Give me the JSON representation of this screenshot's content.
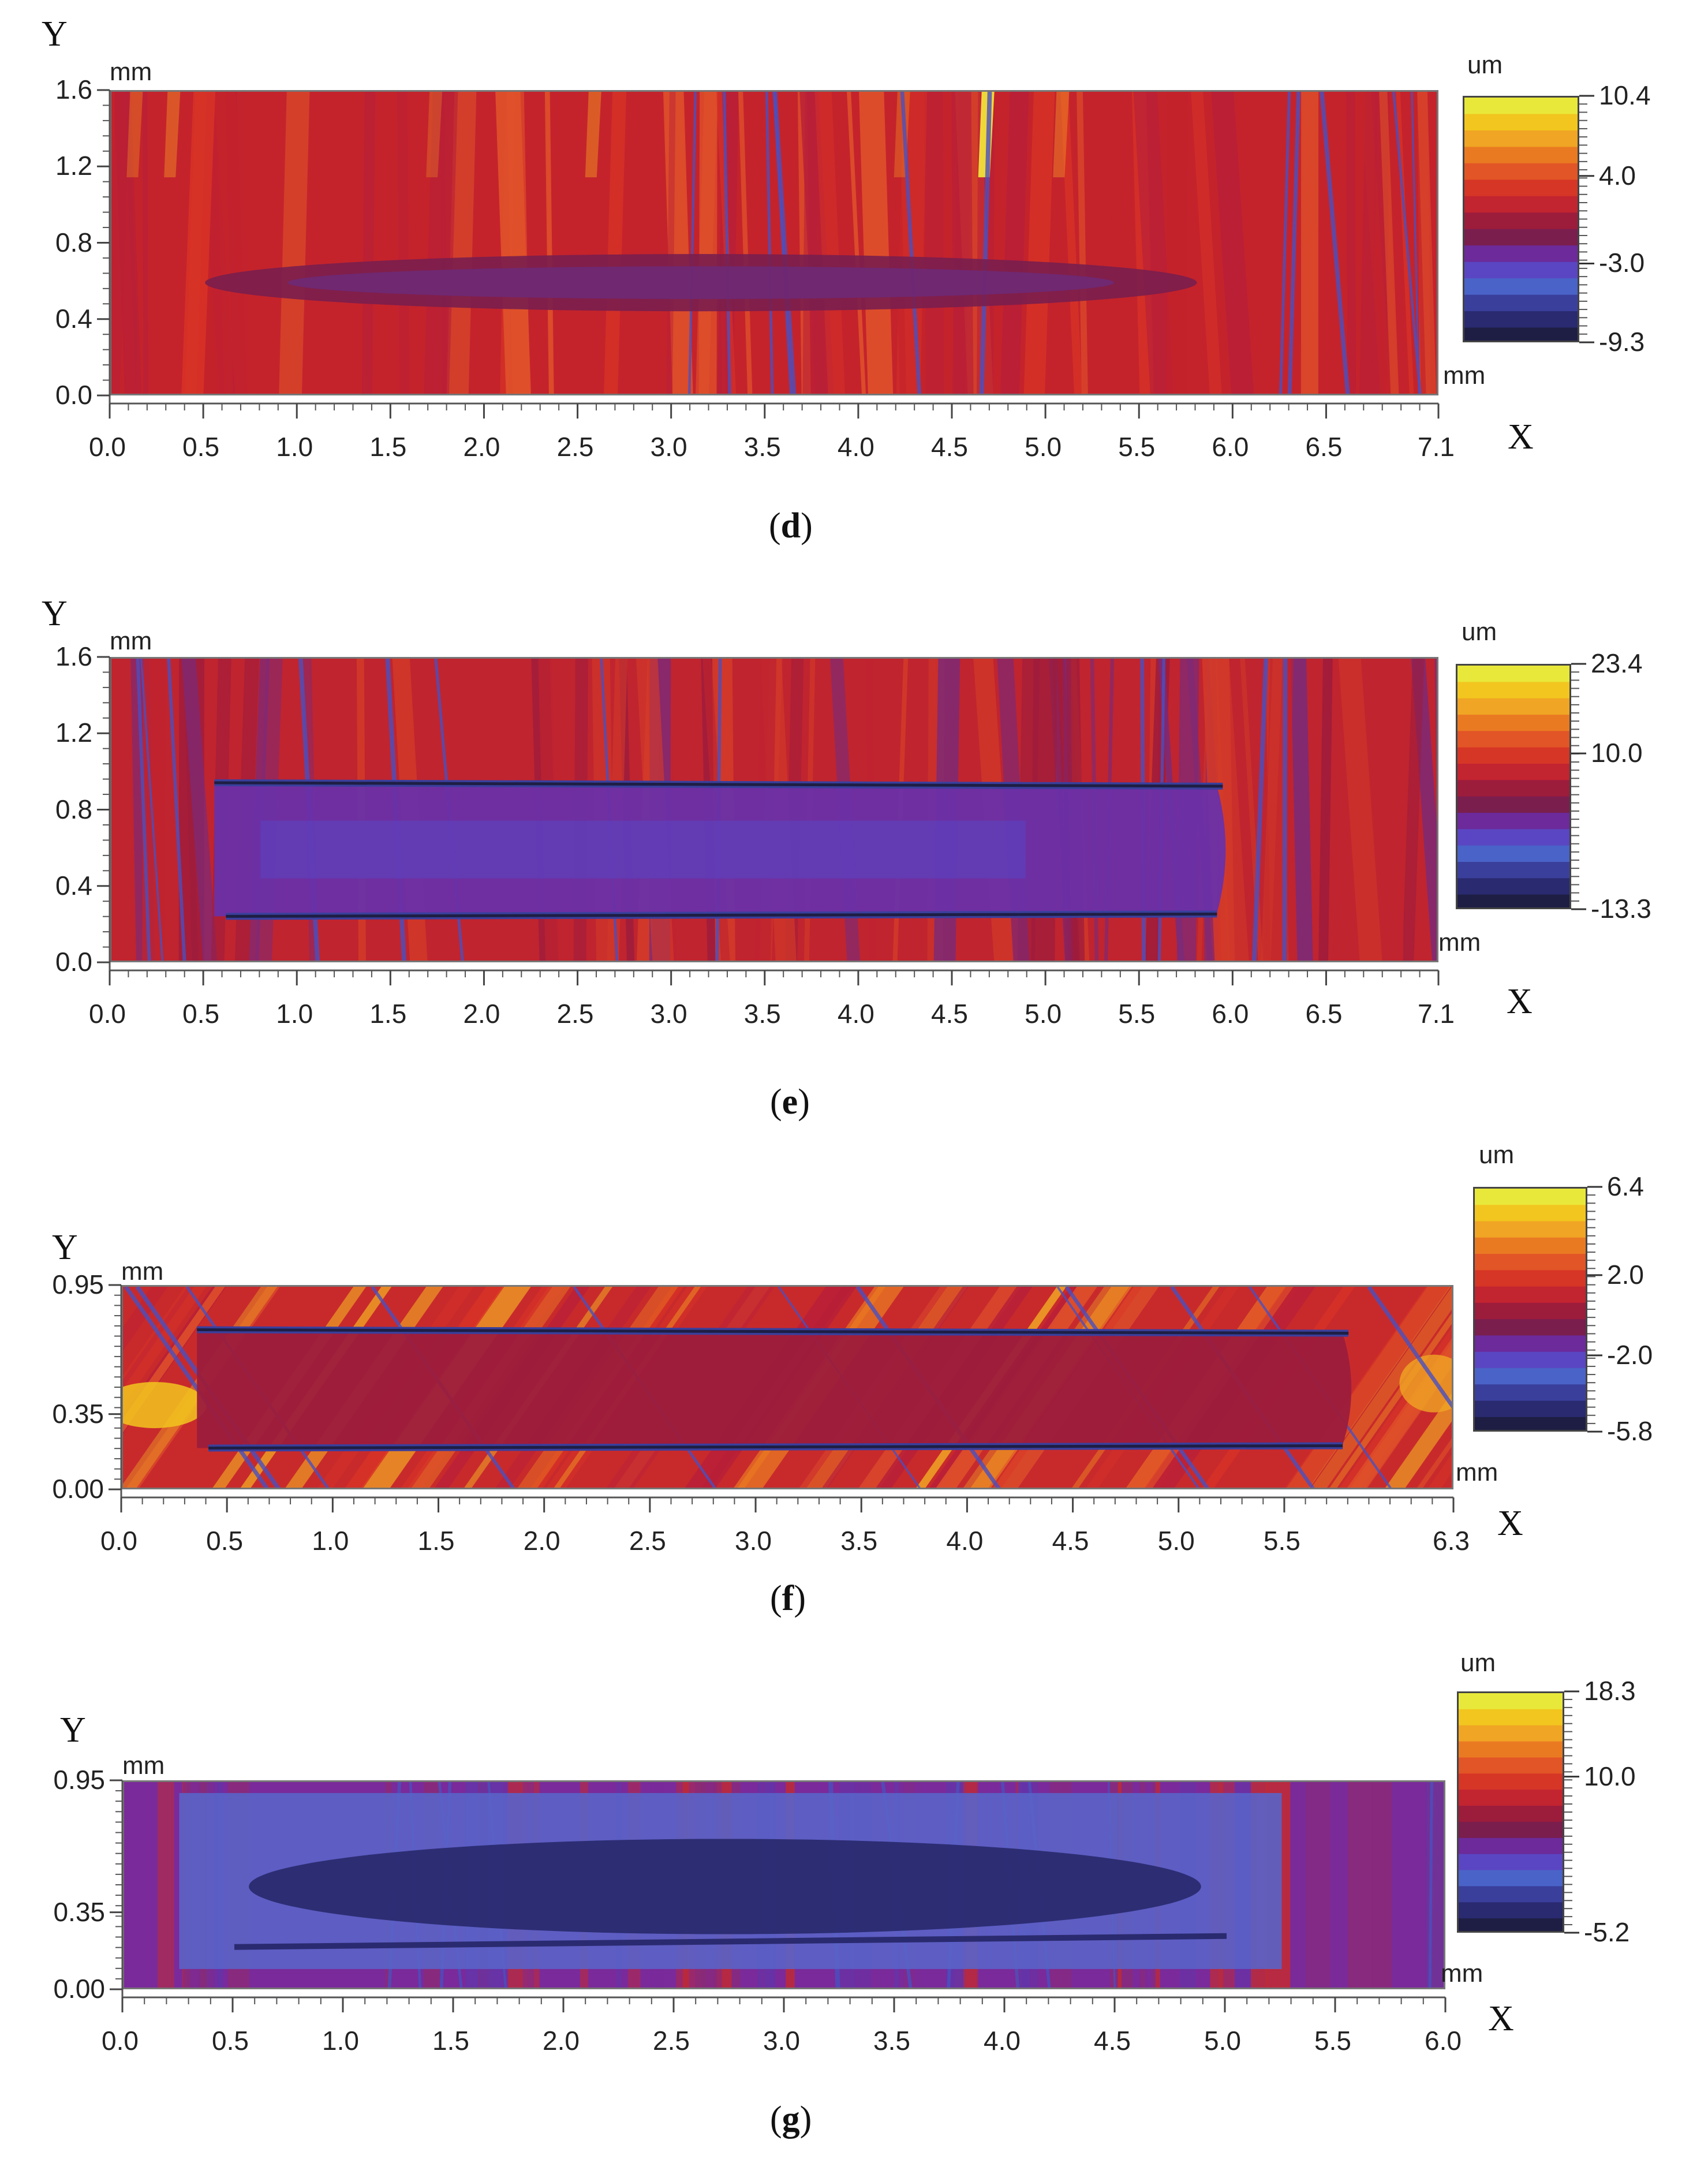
{
  "chart_data": [
    {
      "type": "heatmap",
      "panel_label": "d",
      "xlabel": "X",
      "ylabel": "Y",
      "x_unit": "mm",
      "y_unit": "mm",
      "colorbar_unit": "um",
      "x_range": [
        0.0,
        7.1
      ],
      "y_range": [
        0.0,
        1.6
      ],
      "x_ticks": [
        "0.0",
        "0.5",
        "1.0",
        "1.5",
        "2.0",
        "2.5",
        "3.0",
        "3.5",
        "4.0",
        "4.5",
        "5.0",
        "5.5",
        "6.0",
        "6.5",
        "7.1"
      ],
      "x_tick_values": [
        0.0,
        0.5,
        1.0,
        1.5,
        2.0,
        2.5,
        3.0,
        3.5,
        4.0,
        4.5,
        5.0,
        5.5,
        6.0,
        6.5,
        7.1
      ],
      "y_ticks": [
        "1.6",
        "1.2",
        "0.8",
        "0.4",
        "0.0"
      ],
      "y_tick_values": [
        1.6,
        1.2,
        0.8,
        0.4,
        0.0
      ],
      "colorbar_labels": [
        "10.4",
        "4.0",
        "-3.0",
        "-9.3"
      ],
      "colorbar_label_values": [
        10.4,
        4.0,
        -3.0,
        -9.3
      ],
      "colorbar_range": [
        -9.3,
        10.4
      ],
      "groove": {
        "x_start": 0.5,
        "x_end": 5.8,
        "y_low": 0.45,
        "y_high": 0.75,
        "style": "shallow"
      }
    },
    {
      "type": "heatmap",
      "panel_label": "e",
      "xlabel": "X",
      "ylabel": "Y",
      "x_unit": "mm",
      "y_unit": "mm",
      "colorbar_unit": "um",
      "x_range": [
        0.0,
        7.1
      ],
      "y_range": [
        0.0,
        1.6
      ],
      "x_ticks": [
        "0.0",
        "0.5",
        "1.0",
        "1.5",
        "2.0",
        "2.5",
        "3.0",
        "3.5",
        "4.0",
        "4.5",
        "5.0",
        "5.5",
        "6.0",
        "6.5",
        "7.1"
      ],
      "x_tick_values": [
        0.0,
        0.5,
        1.0,
        1.5,
        2.0,
        2.5,
        3.0,
        3.5,
        4.0,
        4.5,
        5.0,
        5.5,
        6.0,
        6.5,
        7.1
      ],
      "y_ticks": [
        "1.6",
        "1.2",
        "0.8",
        "0.4",
        "0.0"
      ],
      "y_tick_values": [
        1.6,
        1.2,
        0.8,
        0.4,
        0.0
      ],
      "colorbar_labels": [
        "23.4",
        "10.0",
        "-13.3"
      ],
      "colorbar_label_values": [
        23.4,
        10.0,
        -13.3
      ],
      "colorbar_range": [
        -13.3,
        23.4
      ],
      "groove": {
        "x_start": 0.55,
        "x_end": 6.0,
        "y_low": 0.25,
        "y_high": 0.95,
        "style": "edged"
      }
    },
    {
      "type": "heatmap",
      "panel_label": "f",
      "xlabel": "X",
      "ylabel": "Y",
      "x_unit": "mm",
      "y_unit": "mm",
      "colorbar_unit": "um",
      "x_range": [
        0.0,
        6.3
      ],
      "y_range": [
        0.0,
        0.95
      ],
      "x_ticks": [
        "0.0",
        "0.5",
        "1.0",
        "1.5",
        "2.0",
        "2.5",
        "3.0",
        "3.5",
        "4.0",
        "4.5",
        "5.0",
        "5.5",
        "6.3"
      ],
      "x_tick_values": [
        0.0,
        0.5,
        1.0,
        1.5,
        2.0,
        2.5,
        3.0,
        3.5,
        4.0,
        4.5,
        5.0,
        5.5,
        6.3
      ],
      "y_ticks": [
        "0.95",
        "0.35",
        "0.00"
      ],
      "y_tick_values": [
        0.95,
        0.35,
        0.0
      ],
      "colorbar_labels": [
        "6.4",
        "2.0",
        "-2.0",
        "-5.8"
      ],
      "colorbar_label_values": [
        6.4,
        2.0,
        -2.0,
        -5.8
      ],
      "colorbar_range": [
        -5.8,
        6.4
      ],
      "groove": {
        "x_start": 0.35,
        "x_end": 5.85,
        "y_low": 0.2,
        "y_high": 0.75,
        "style": "edged"
      }
    },
    {
      "type": "heatmap",
      "panel_label": "g",
      "xlabel": "X",
      "ylabel": "Y",
      "x_unit": "mm",
      "y_unit": "mm",
      "colorbar_unit": "um",
      "x_range": [
        0.0,
        6.0
      ],
      "y_range": [
        0.0,
        0.95
      ],
      "x_ticks": [
        "0.0",
        "0.5",
        "1.0",
        "1.5",
        "2.0",
        "2.5",
        "3.0",
        "3.5",
        "4.0",
        "4.5",
        "5.0",
        "5.5",
        "6.0"
      ],
      "x_tick_values": [
        0.0,
        0.5,
        1.0,
        1.5,
        2.0,
        2.5,
        3.0,
        3.5,
        4.0,
        4.5,
        5.0,
        5.5,
        6.0
      ],
      "y_ticks": [
        "0.95",
        "0.35",
        "0.00"
      ],
      "y_tick_values": [
        0.95,
        0.35,
        0.0
      ],
      "colorbar_labels": [
        "18.3",
        "10.0",
        "-5.2"
      ],
      "colorbar_label_values": [
        18.3,
        10.0,
        -5.2
      ],
      "colorbar_range": [
        -5.2,
        18.3
      ],
      "groove": {
        "x_start": 0.35,
        "x_end": 5.1,
        "y_low": 0.15,
        "y_high": 0.8,
        "style": "deep"
      }
    }
  ],
  "palette": {
    "colorbar_bands": [
      "#e8e83a",
      "#f2c61e",
      "#f0a524",
      "#ea7a22",
      "#e25526",
      "#d63626",
      "#c22430",
      "#9c1c3c",
      "#7a1e4e",
      "#6c2a9a",
      "#5a46c2",
      "#4a63c8",
      "#3a3f9c",
      "#2a2a70",
      "#1e1e44"
    ],
    "background": "#ffffff"
  }
}
